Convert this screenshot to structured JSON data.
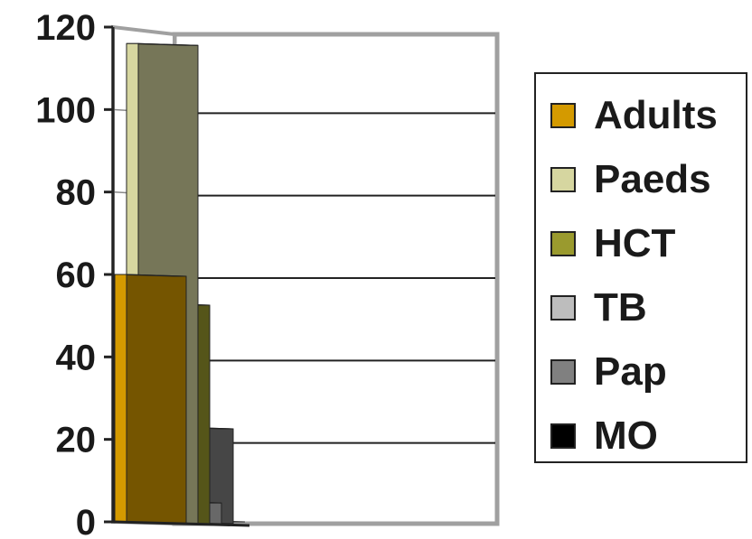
{
  "chart_data": {
    "type": "bar",
    "style": "3d-clustered-column",
    "categories": [
      ""
    ],
    "series": [
      {
        "name": "Adults",
        "values": [
          60
        ],
        "color": "#D49A00"
      },
      {
        "name": "Paeds",
        "values": [
          116
        ],
        "color": "#D6D6A0"
      },
      {
        "name": "HCT",
        "values": [
          53
        ],
        "color": "#9A9A2E"
      },
      {
        "name": "TB",
        "values": [
          5
        ],
        "color": "#BDBDBD"
      },
      {
        "name": "Pap",
        "values": [
          23
        ],
        "color": "#808080"
      },
      {
        "name": "MO",
        "values": [
          0
        ],
        "color": "#000000"
      }
    ],
    "ylim": [
      0,
      120
    ],
    "yticks": [
      0,
      20,
      40,
      60,
      80,
      100,
      120
    ],
    "grid": true,
    "legend_position": "right"
  }
}
